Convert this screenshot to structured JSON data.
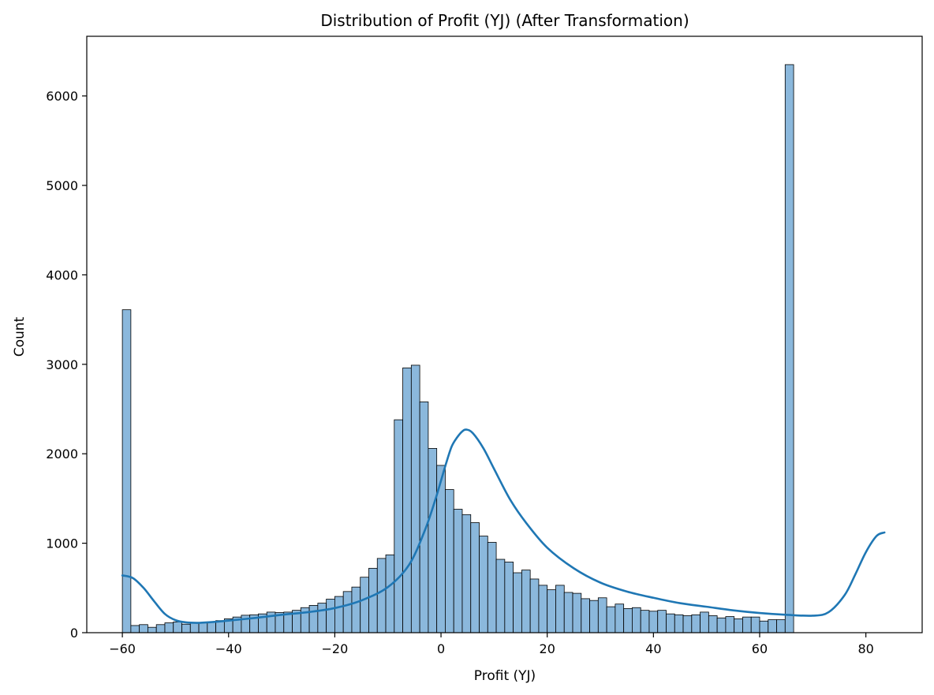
{
  "chart_data": {
    "type": "bar",
    "title": "Distribution of Profit (YJ) (After Transformation)",
    "xlabel": "Profit (YJ)",
    "ylabel": "Count",
    "xlim": [
      -66.7,
      90.6
    ],
    "ylim": [
      0,
      6667
    ],
    "xticks": [
      -60,
      -40,
      -20,
      0,
      20,
      40,
      60,
      80
    ],
    "yticks": [
      0,
      1000,
      2000,
      3000,
      4000,
      5000,
      6000
    ],
    "xtick_labels": [
      "−60",
      "−40",
      "−20",
      "0",
      "20",
      "40",
      "60",
      "80"
    ],
    "ytick_labels": [
      "0",
      "1000",
      "2000",
      "3000",
      "4000",
      "5000",
      "6000"
    ],
    "grid": false,
    "bar_color": "#8bb8dc",
    "bar_edge_color": "#000000",
    "kde_color": "#1f77b4",
    "bins": {
      "start": -60,
      "width": 1.6,
      "counts": [
        3610,
        80,
        90,
        60,
        90,
        110,
        120,
        95,
        110,
        115,
        120,
        135,
        155,
        175,
        195,
        200,
        210,
        230,
        225,
        230,
        250,
        280,
        305,
        330,
        375,
        405,
        460,
        510,
        620,
        720,
        830,
        870,
        2380,
        2960,
        2990,
        2580,
        2060,
        1870,
        1600,
        1380,
        1320,
        1230,
        1080,
        1010,
        820,
        790,
        670,
        700,
        600,
        530,
        480,
        530,
        450,
        440,
        380,
        360,
        390,
        290,
        320,
        270,
        280,
        250,
        240,
        250,
        210,
        200,
        190,
        200,
        230,
        190,
        165,
        180,
        155,
        175,
        175,
        130,
        145,
        145,
        6350
      ]
    },
    "kde": {
      "x": [
        -60,
        -58,
        -56,
        -54,
        -52,
        -50,
        -48,
        -46,
        -44,
        -40,
        -35,
        -30,
        -25,
        -20,
        -15,
        -10,
        -6,
        -3,
        -1,
        0,
        1,
        2,
        3,
        4,
        4.8,
        6,
        8,
        10,
        13,
        16,
        20,
        25,
        30,
        35,
        40,
        45,
        50,
        55,
        60,
        65,
        70,
        73,
        76,
        78,
        80,
        82,
        83.5
      ],
      "y": [
        640,
        610,
        500,
        350,
        210,
        140,
        115,
        110,
        115,
        135,
        165,
        200,
        230,
        275,
        360,
        510,
        760,
        1150,
        1500,
        1700,
        1900,
        2080,
        2180,
        2250,
        2270,
        2230,
        2060,
        1830,
        1490,
        1230,
        950,
        720,
        560,
        460,
        390,
        330,
        290,
        250,
        220,
        200,
        190,
        230,
        420,
        650,
        900,
        1080,
        1120
      ]
    }
  }
}
